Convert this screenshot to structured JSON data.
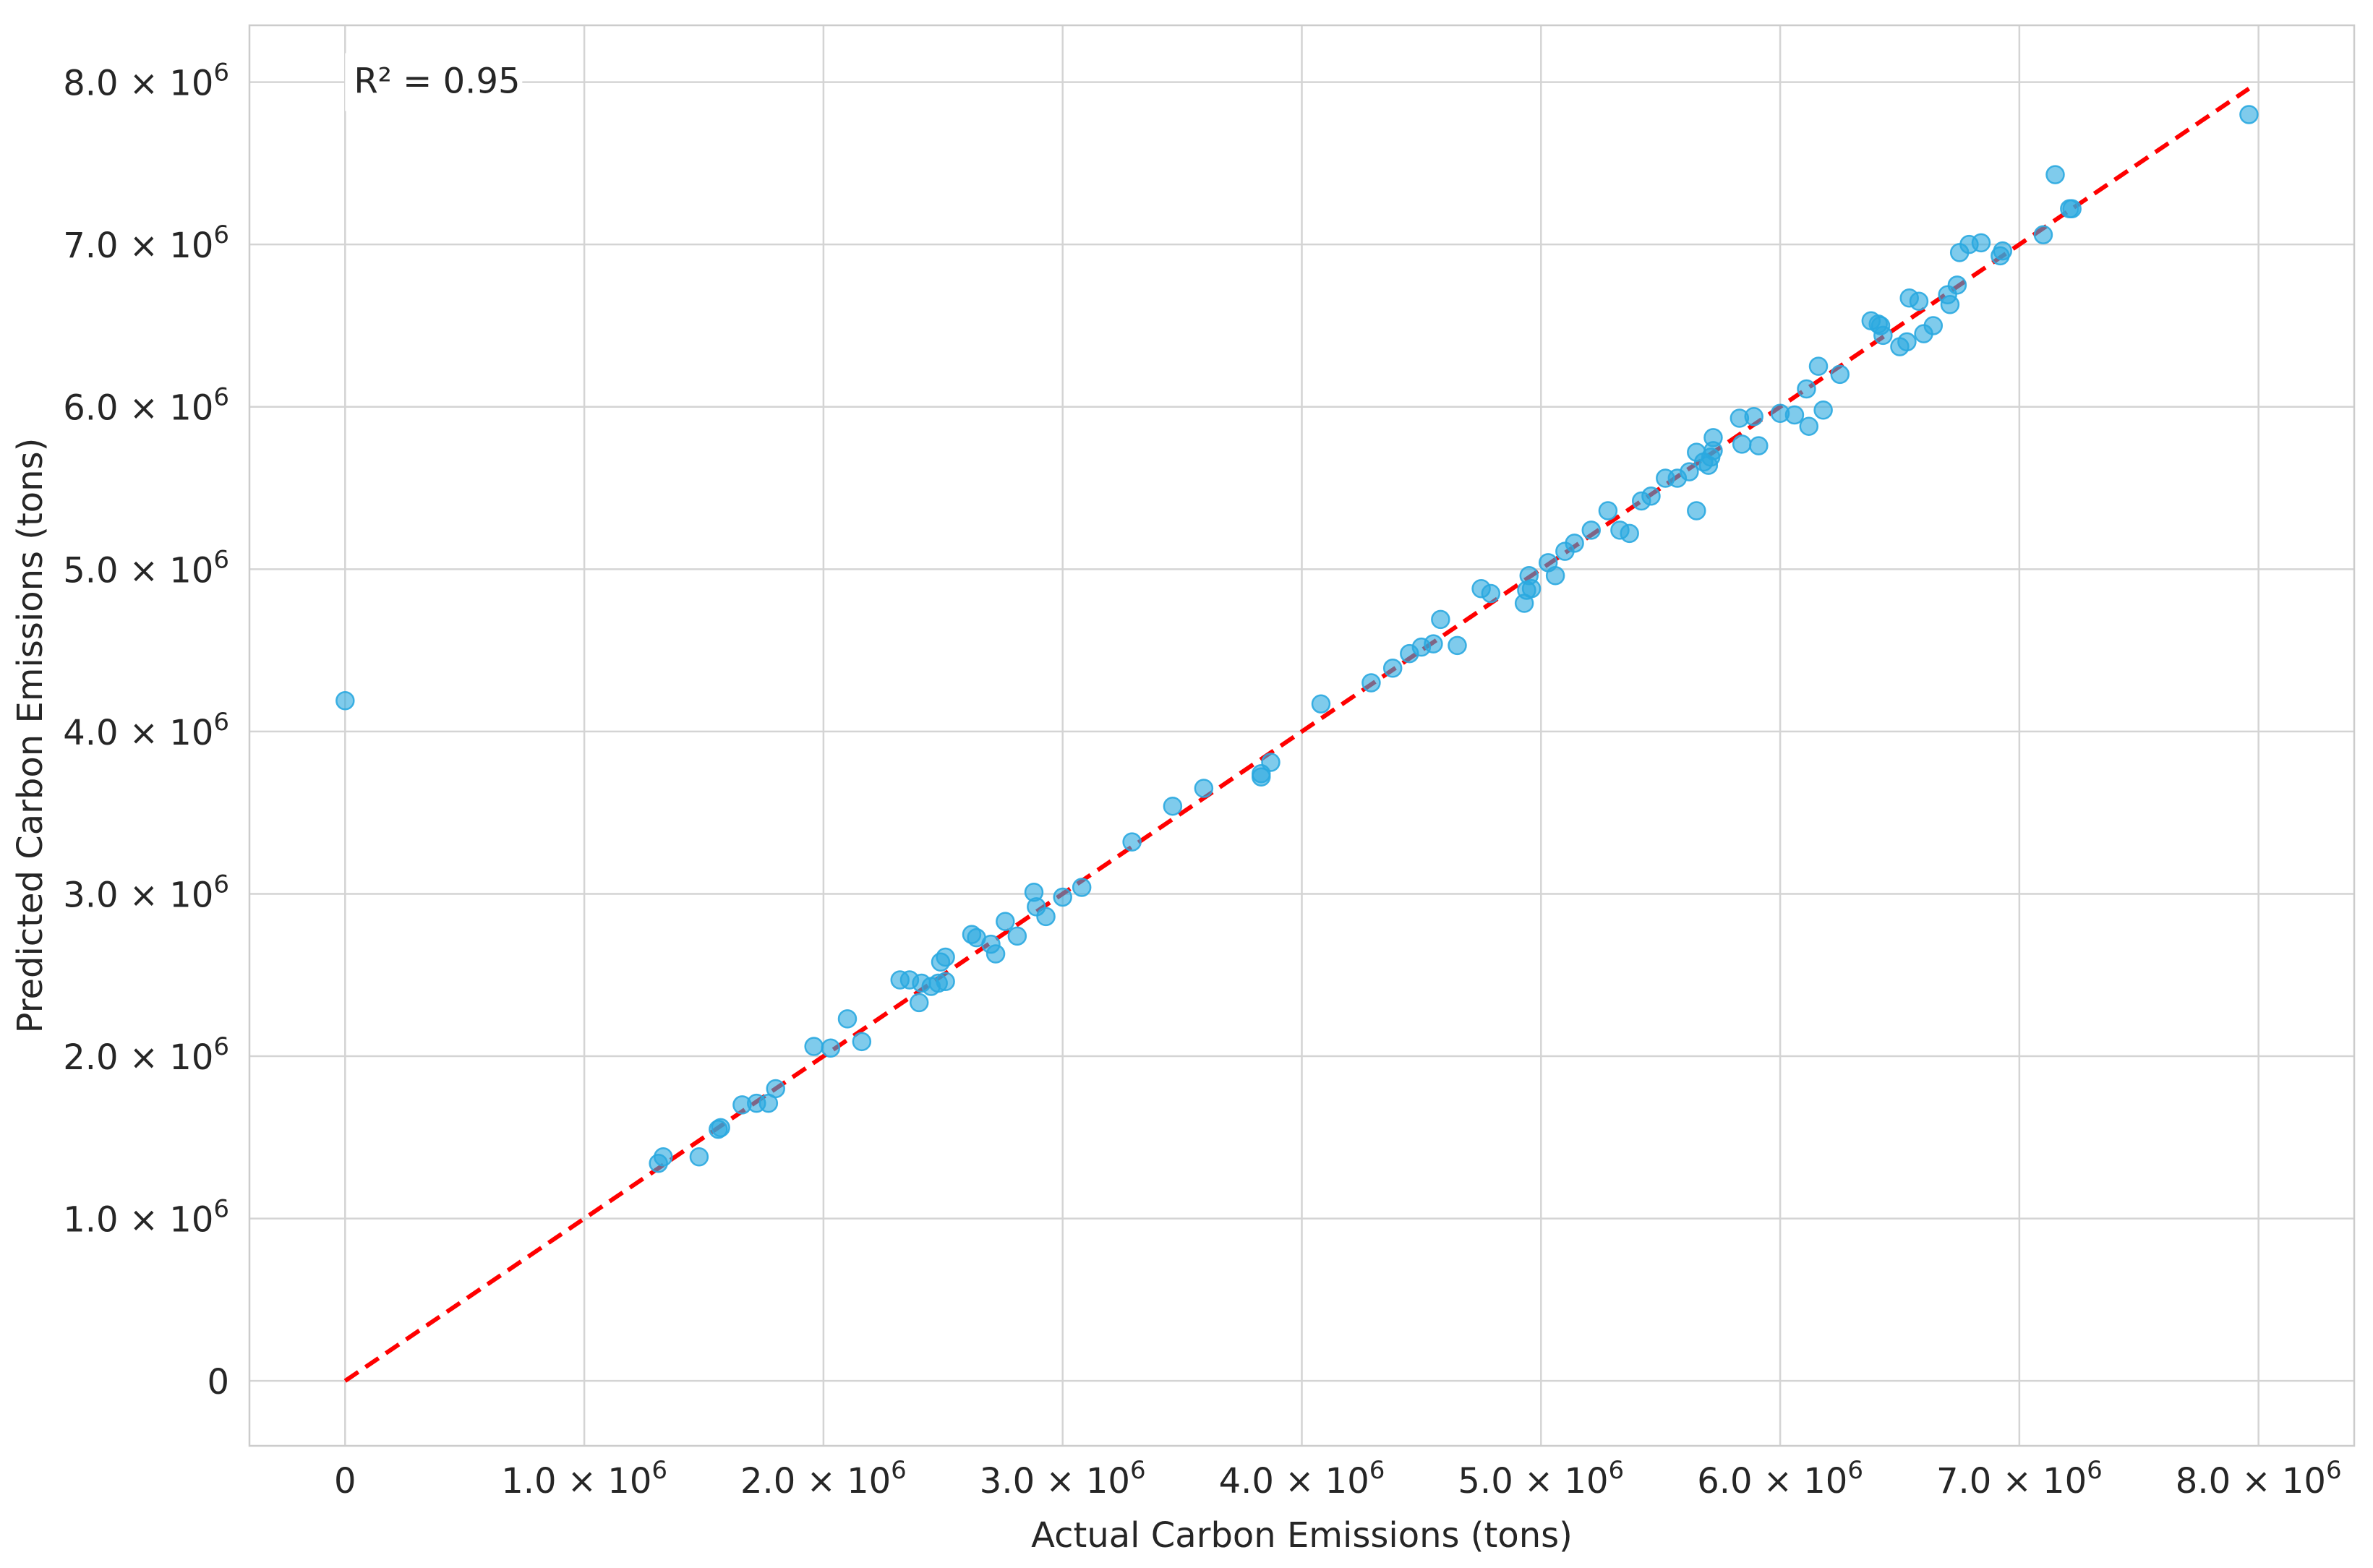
{
  "chart_data": {
    "type": "scatter",
    "title": "",
    "xlabel": "Actual Carbon Emissions (tons)",
    "ylabel": "Predicted Carbon Emissions (tons)",
    "xlim": [
      -400000,
      8400000
    ],
    "ylim": [
      -400000,
      8350000
    ],
    "x_ticks": [
      0,
      1000000,
      2000000,
      3000000,
      4000000,
      5000000,
      6000000,
      7000000,
      8000000
    ],
    "y_ticks": [
      0,
      1000000,
      2000000,
      3000000,
      4000000,
      5000000,
      6000000,
      7000000,
      8000000
    ],
    "x_tick_labels": [
      {
        "mant": "0",
        "exp": ""
      },
      {
        "mant": "1.0 × 10",
        "exp": "6"
      },
      {
        "mant": "2.0 × 10",
        "exp": "6"
      },
      {
        "mant": "3.0 × 10",
        "exp": "6"
      },
      {
        "mant": "4.0 × 10",
        "exp": "6"
      },
      {
        "mant": "5.0 × 10",
        "exp": "6"
      },
      {
        "mant": "6.0 × 10",
        "exp": "6"
      },
      {
        "mant": "7.0 × 10",
        "exp": "6"
      },
      {
        "mant": "8.0 × 10",
        "exp": "6"
      }
    ],
    "y_tick_labels": [
      {
        "mant": "0",
        "exp": ""
      },
      {
        "mant": "1.0 × 10",
        "exp": "6"
      },
      {
        "mant": "2.0 × 10",
        "exp": "6"
      },
      {
        "mant": "3.0 × 10",
        "exp": "6"
      },
      {
        "mant": "4.0 × 10",
        "exp": "6"
      },
      {
        "mant": "5.0 × 10",
        "exp": "6"
      },
      {
        "mant": "6.0 × 10",
        "exp": "6"
      },
      {
        "mant": "7.0 × 10",
        "exp": "6"
      },
      {
        "mant": "8.0 × 10",
        "exp": "6"
      }
    ],
    "grid": true,
    "annotation": "R² = 0.95",
    "reference_line": {
      "from": [
        0,
        0
      ],
      "to": [
        7960000,
        7960000
      ],
      "style": "dashed",
      "color": "#ff0000"
    },
    "point_color": "#2aa8e0",
    "points": [
      [
        0,
        4190000
      ],
      [
        1310000,
        1340000
      ],
      [
        1330000,
        1380000
      ],
      [
        1480000,
        1380000
      ],
      [
        1560000,
        1550000
      ],
      [
        1570000,
        1560000
      ],
      [
        1660000,
        1700000
      ],
      [
        1720000,
        1710000
      ],
      [
        1770000,
        1710000
      ],
      [
        1800000,
        1800000
      ],
      [
        1960000,
        2060000
      ],
      [
        2030000,
        2050000
      ],
      [
        2100000,
        2230000
      ],
      [
        2160000,
        2090000
      ],
      [
        2320000,
        2470000
      ],
      [
        2360000,
        2470000
      ],
      [
        2410000,
        2450000
      ],
      [
        2400000,
        2330000
      ],
      [
        2450000,
        2430000
      ],
      [
        2480000,
        2450000
      ],
      [
        2490000,
        2580000
      ],
      [
        2510000,
        2460000
      ],
      [
        2510000,
        2610000
      ],
      [
        2620000,
        2750000
      ],
      [
        2640000,
        2730000
      ],
      [
        2700000,
        2690000
      ],
      [
        2720000,
        2630000
      ],
      [
        2760000,
        2830000
      ],
      [
        2810000,
        2740000
      ],
      [
        2880000,
        3010000
      ],
      [
        2890000,
        2920000
      ],
      [
        2930000,
        2860000
      ],
      [
        3000000,
        2980000
      ],
      [
        3080000,
        3040000
      ],
      [
        3290000,
        3320000
      ],
      [
        3460000,
        3540000
      ],
      [
        3590000,
        3650000
      ],
      [
        3830000,
        3740000
      ],
      [
        3830000,
        3720000
      ],
      [
        3870000,
        3810000
      ],
      [
        4080000,
        4170000
      ],
      [
        4290000,
        4300000
      ],
      [
        4380000,
        4390000
      ],
      [
        4450000,
        4480000
      ],
      [
        4500000,
        4520000
      ],
      [
        4550000,
        4540000
      ],
      [
        4580000,
        4690000
      ],
      [
        4650000,
        4530000
      ],
      [
        4750000,
        4880000
      ],
      [
        4790000,
        4850000
      ],
      [
        4930000,
        4790000
      ],
      [
        4940000,
        4870000
      ],
      [
        4950000,
        4960000
      ],
      [
        4960000,
        4880000
      ],
      [
        5030000,
        5040000
      ],
      [
        5060000,
        4960000
      ],
      [
        5100000,
        5110000
      ],
      [
        5140000,
        5160000
      ],
      [
        5210000,
        5240000
      ],
      [
        5280000,
        5360000
      ],
      [
        5330000,
        5240000
      ],
      [
        5370000,
        5220000
      ],
      [
        5420000,
        5420000
      ],
      [
        5460000,
        5450000
      ],
      [
        5520000,
        5560000
      ],
      [
        5570000,
        5560000
      ],
      [
        5620000,
        5600000
      ],
      [
        5650000,
        5360000
      ],
      [
        5650000,
        5720000
      ],
      [
        5680000,
        5660000
      ],
      [
        5700000,
        5640000
      ],
      [
        5710000,
        5690000
      ],
      [
        5720000,
        5730000
      ],
      [
        5720000,
        5810000
      ],
      [
        5830000,
        5930000
      ],
      [
        5840000,
        5770000
      ],
      [
        5890000,
        5940000
      ],
      [
        5910000,
        5760000
      ],
      [
        6000000,
        5960000
      ],
      [
        6060000,
        5950000
      ],
      [
        6110000,
        6110000
      ],
      [
        6120000,
        5880000
      ],
      [
        6160000,
        6250000
      ],
      [
        6180000,
        5980000
      ],
      [
        6250000,
        6200000
      ],
      [
        6380000,
        6530000
      ],
      [
        6410000,
        6510000
      ],
      [
        6420000,
        6500000
      ],
      [
        6430000,
        6440000
      ],
      [
        6500000,
        6370000
      ],
      [
        6530000,
        6400000
      ],
      [
        6540000,
        6670000
      ],
      [
        6580000,
        6650000
      ],
      [
        6600000,
        6450000
      ],
      [
        6640000,
        6500000
      ],
      [
        6700000,
        6690000
      ],
      [
        6710000,
        6630000
      ],
      [
        6740000,
        6750000
      ],
      [
        6750000,
        6950000
      ],
      [
        6790000,
        7000000
      ],
      [
        6840000,
        7010000
      ],
      [
        6920000,
        6930000
      ],
      [
        6930000,
        6960000
      ],
      [
        7100000,
        7060000
      ],
      [
        7150000,
        7430000
      ],
      [
        7210000,
        7220000
      ],
      [
        7220000,
        7220000
      ],
      [
        7960000,
        7800000
      ]
    ]
  }
}
